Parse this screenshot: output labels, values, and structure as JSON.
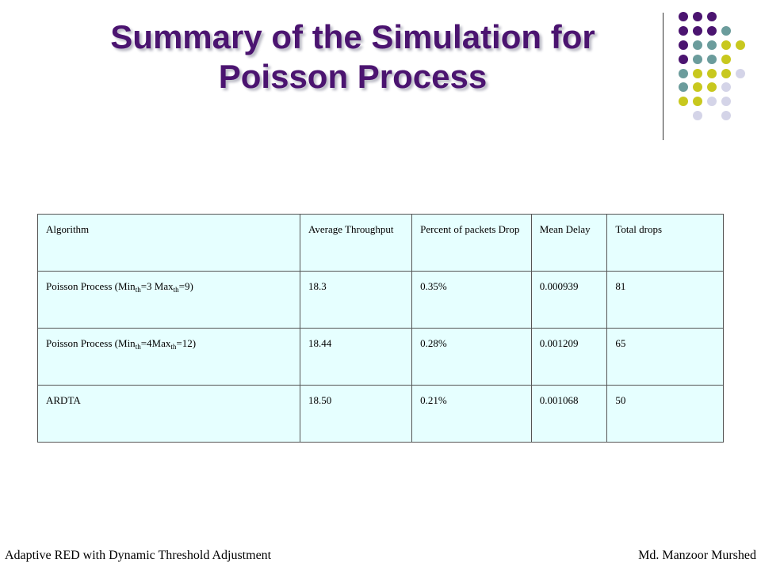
{
  "title": {
    "line1": "Summary of the Simulation for",
    "line2": "Poisson Process"
  },
  "colors": {
    "title": "#4b1470",
    "purple": "#4b1470",
    "teal": "#6b9c9c",
    "yellow": "#c8c81e",
    "lavender": "#d4d4e8",
    "table_bg": "#e6ffff"
  },
  "table": {
    "headers": [
      "Algorithm",
      "Average Throughput",
      "Percent of packets Drop",
      "Mean Delay",
      "Total drops"
    ],
    "rows": [
      {
        "alg": {
          "pre": "Poisson Process (Min",
          "sub1": "th",
          "mid": "=3  Max",
          "sub2": "th",
          "post": "=9)"
        },
        "throughput": "18.3",
        "drop": "0.35%",
        "delay": "0.000939",
        "total": "81"
      },
      {
        "alg": {
          "pre": "Poisson Process (Min",
          "sub1": "th",
          "mid": "=4Max",
          "sub2": "th",
          "post": "=12)"
        },
        "throughput": "18.44",
        "drop": "0.28%",
        "delay": "0.001209",
        "total": "65"
      },
      {
        "alg": {
          "text": "ARDTA"
        },
        "throughput": "18.50",
        "drop": "0.21%",
        "delay": "0.001068",
        "total": "50"
      }
    ]
  },
  "footer": {
    "left": "Adaptive RED with Dynamic Threshold Adjustment",
    "right": "Md. Manzoor Murshed"
  }
}
